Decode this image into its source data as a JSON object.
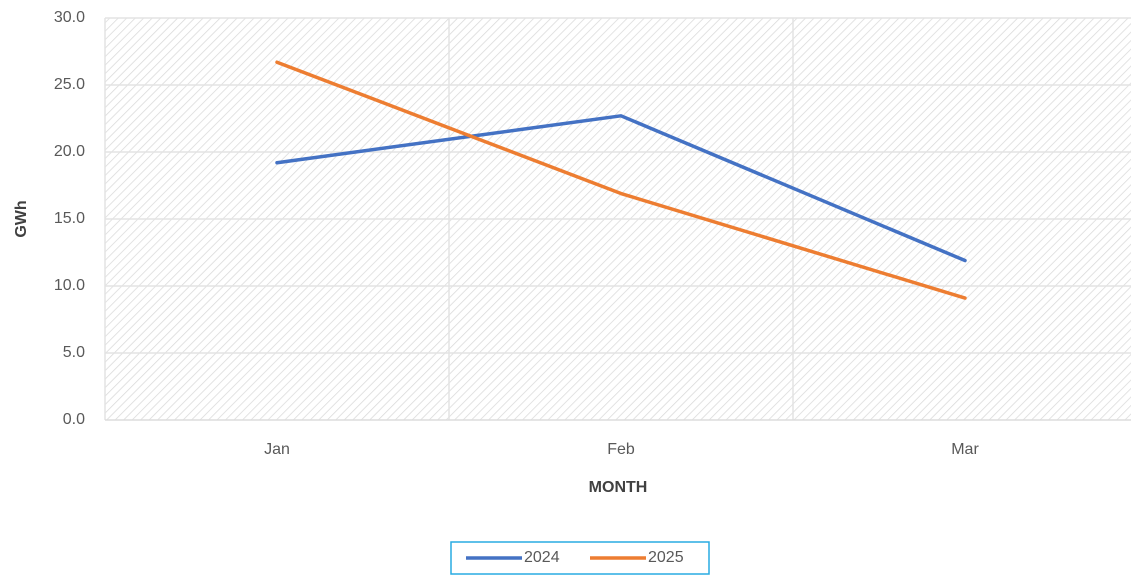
{
  "chart_data": {
    "type": "line",
    "x_label": "MONTH",
    "y_label": "GWh",
    "categories": [
      "Jan",
      "Feb",
      "Mar"
    ],
    "series": [
      {
        "name": "2024",
        "color": "#4472c4",
        "values": [
          19.2,
          22.7,
          11.9
        ]
      },
      {
        "name": "2025",
        "color": "#ed7d31",
        "values": [
          26.7,
          16.9,
          9.1
        ]
      }
    ],
    "ylim": [
      0,
      30
    ],
    "yticks": [
      {
        "value": 0,
        "label": "0.0"
      },
      {
        "value": 5,
        "label": "5.0"
      },
      {
        "value": 10,
        "label": "10.0"
      },
      {
        "value": 15,
        "label": "15.0"
      },
      {
        "value": 20,
        "label": "20.0"
      },
      {
        "value": 25,
        "label": "25.0"
      },
      {
        "value": 30,
        "label": "30.0"
      }
    ],
    "grid": true,
    "legend": "bottom"
  }
}
